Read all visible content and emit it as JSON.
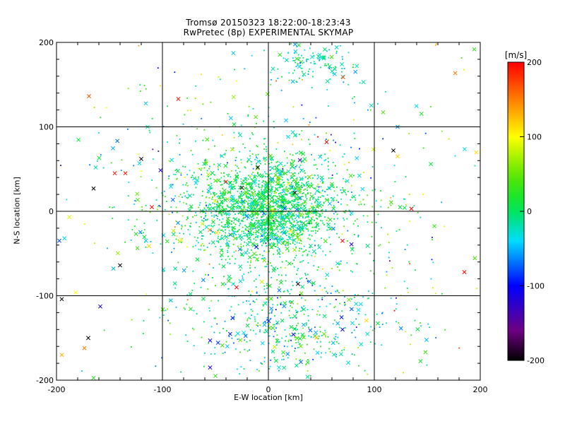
{
  "chart_data": {
    "type": "scatter",
    "title": "Tromsø 20150323 18:22:00-18:23:43",
    "subtitle": "RwPretec (8p) EXPERIMENTAL SKYMAP",
    "xlabel": "E-W location [km]",
    "ylabel": "N-S location [km]",
    "xlim": [
      -200,
      200
    ],
    "ylim": [
      -200,
      200
    ],
    "xticks": [
      -200,
      -100,
      0,
      100,
      200
    ],
    "yticks": [
      -200,
      -100,
      0,
      100,
      200
    ],
    "grid": true,
    "colorbar": {
      "label": "[m/s]",
      "range": [
        -200,
        200
      ],
      "ticks": [
        200,
        100,
        0,
        -100,
        -200
      ],
      "colormap": "rainbow (black-purple-blue-cyan-green-yellow-red)"
    },
    "markers": [
      "cross (x)",
      "dot"
    ],
    "clusters": [
      {
        "x": 0,
        "y": 0,
        "sx": 32,
        "sy": 28,
        "n": 1600,
        "v": 0,
        "vs": 25
      },
      {
        "x": -15,
        "y": 10,
        "sx": 60,
        "sy": 50,
        "n": 700,
        "v": 5,
        "vs": 45
      },
      {
        "x": 20,
        "y": -130,
        "sx": 50,
        "sy": 35,
        "n": 500,
        "v": -10,
        "vs": 40
      },
      {
        "x": 45,
        "y": 175,
        "sx": 18,
        "sy": 14,
        "n": 120,
        "v": -25,
        "vs": 25
      },
      {
        "x": 0,
        "y": 0,
        "sx": 120,
        "sy": 110,
        "n": 380,
        "v": 15,
        "vs": 70
      }
    ],
    "notable_points": [
      {
        "x": -145,
        "y": 45,
        "v": 190,
        "m": "x"
      },
      {
        "x": -135,
        "y": 45,
        "v": 190,
        "m": "x"
      },
      {
        "x": -110,
        "y": 5,
        "v": 200,
        "m": "x"
      },
      {
        "x": 135,
        "y": 3,
        "v": 200,
        "m": "x"
      },
      {
        "x": 185,
        "y": -72,
        "v": 200,
        "m": "x"
      },
      {
        "x": 70,
        "y": -35,
        "v": 200,
        "m": "x"
      },
      {
        "x": -30,
        "y": -90,
        "v": 200,
        "m": "x"
      },
      {
        "x": -85,
        "y": 133,
        "v": 190,
        "m": "x"
      },
      {
        "x": 118,
        "y": 72,
        "v": -200,
        "m": "x"
      },
      {
        "x": -120,
        "y": 62,
        "v": -200,
        "m": "x"
      },
      {
        "x": -165,
        "y": 27,
        "v": -200,
        "m": "x"
      },
      {
        "x": -140,
        "y": -64,
        "v": -200,
        "m": "x"
      },
      {
        "x": -170,
        "y": -150,
        "v": -200,
        "m": "x"
      },
      {
        "x": -195,
        "y": -104,
        "v": -200,
        "m": "x"
      },
      {
        "x": 28,
        "y": -86,
        "v": -200,
        "m": "x"
      },
      {
        "x": -10,
        "y": 52,
        "v": -200,
        "m": "x"
      },
      {
        "x": 25,
        "y": 22,
        "v": -190,
        "m": "x"
      },
      {
        "x": -55,
        "y": -153,
        "v": -100,
        "m": "x"
      },
      {
        "x": -55,
        "y": -185,
        "v": -110,
        "m": "x"
      },
      {
        "x": 70,
        "y": -140,
        "v": -110,
        "m": "x"
      },
      {
        "x": 122,
        "y": 100,
        "v": -60,
        "m": "x"
      },
      {
        "x": -195,
        "y": -170,
        "v": 130,
        "m": "x"
      },
      {
        "x": 122,
        "y": 65,
        "v": 120,
        "m": "x"
      },
      {
        "x": -40,
        "y": 35,
        "v": 190,
        "m": "x"
      },
      {
        "x": -25,
        "y": 28,
        "v": -190,
        "m": "x"
      },
      {
        "x": 55,
        "y": 82,
        "v": 200,
        "m": "x"
      },
      {
        "x": -50,
        "y": -195,
        "v": 30,
        "m": "x"
      }
    ]
  }
}
